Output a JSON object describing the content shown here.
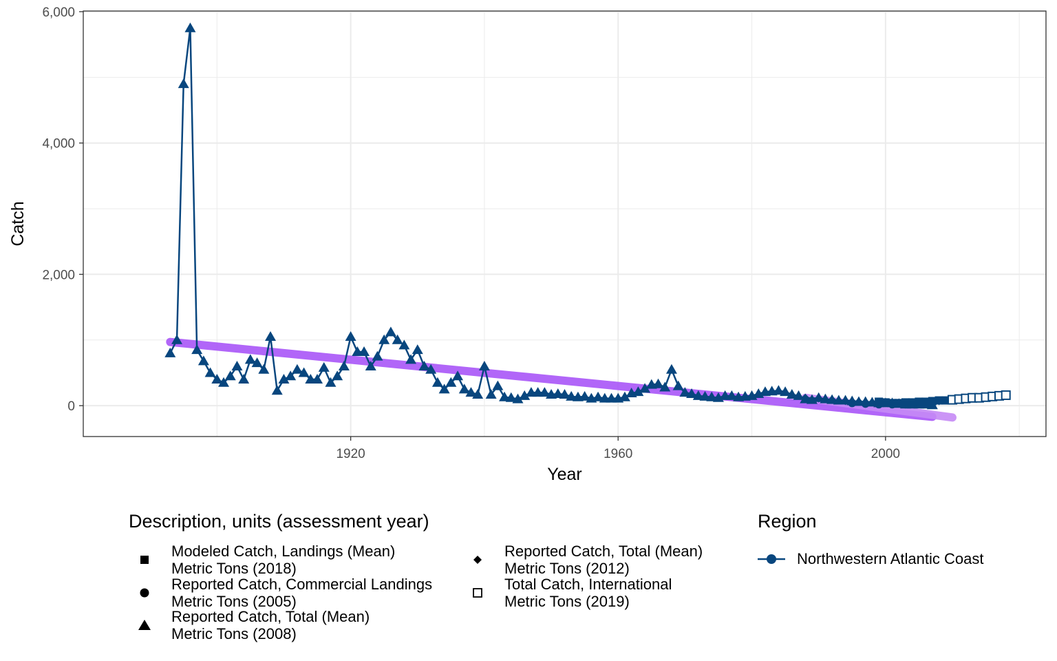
{
  "chart_data": {
    "type": "line",
    "title": "",
    "xlabel": "Year",
    "ylabel": "Catch",
    "xlim": [
      1880,
      2024
    ],
    "ylim": [
      -470,
      6010
    ],
    "x_ticks": [
      1920,
      1960,
      2000
    ],
    "x_tick_labels": [
      "1920",
      "1960",
      "2000"
    ],
    "y_ticks": [
      0,
      2000,
      4000,
      6000
    ],
    "y_tick_labels": [
      "0",
      "2,000",
      "4,000",
      "6,000"
    ],
    "grid": true,
    "colors": {
      "series": "#08467e",
      "trend": "#a855f7",
      "trend_light": "#c58af5"
    },
    "series": [
      {
        "name": "Reported Catch, Total (Mean) Metric Tons (2008)",
        "marker": "triangle",
        "region": "Northwestern Atlantic Coast",
        "x": [
          1893,
          1894,
          1895,
          1896,
          1897,
          1898,
          1899,
          1900,
          1901,
          1902,
          1903,
          1904,
          1905,
          1906,
          1907,
          1908,
          1909,
          1910,
          1911,
          1912,
          1913,
          1914,
          1915,
          1916,
          1917,
          1918,
          1919,
          1920,
          1921,
          1922,
          1923,
          1924,
          1925,
          1926,
          1927,
          1928,
          1929,
          1930,
          1931,
          1932,
          1933,
          1934,
          1935,
          1936,
          1937,
          1938,
          1939,
          1940,
          1941,
          1942,
          1943,
          1944,
          1945,
          1946,
          1947,
          1948,
          1949,
          1950,
          1951,
          1952,
          1953,
          1954,
          1955,
          1956,
          1957,
          1958,
          1959,
          1960,
          1961,
          1962,
          1963,
          1964,
          1965,
          1966,
          1967,
          1968,
          1969,
          1970,
          1971,
          1972,
          1973,
          1974,
          1975,
          1976,
          1977,
          1978,
          1979,
          1980,
          1981,
          1982,
          1983,
          1984,
          1985,
          1986,
          1987,
          1988,
          1989,
          1990,
          1991,
          1992,
          1993,
          1994,
          1995,
          1996,
          1997,
          1998,
          1999,
          2000,
          2001,
          2002,
          2003,
          2004,
          2005,
          2006,
          2007
        ],
        "y": [
          800,
          1000,
          4900,
          5750,
          850,
          680,
          500,
          400,
          350,
          450,
          600,
          400,
          700,
          650,
          550,
          1050,
          230,
          400,
          450,
          550,
          500,
          400,
          400,
          580,
          350,
          450,
          600,
          1050,
          820,
          820,
          600,
          750,
          1000,
          1120,
          1000,
          920,
          700,
          850,
          600,
          550,
          350,
          250,
          350,
          450,
          250,
          200,
          170,
          600,
          170,
          300,
          130,
          120,
          100,
          150,
          200,
          200,
          200,
          170,
          180,
          170,
          140,
          130,
          140,
          110,
          130,
          110,
          110,
          110,
          130,
          190,
          210,
          260,
          320,
          330,
          280,
          550,
          300,
          200,
          180,
          150,
          140,
          130,
          120,
          150,
          150,
          130,
          140,
          150,
          180,
          210,
          220,
          230,
          210,
          170,
          150,
          100,
          90,
          120,
          100,
          90,
          80,
          80,
          70,
          60,
          60,
          50,
          40,
          40,
          40,
          30,
          20,
          20,
          20,
          20,
          10
        ]
      },
      {
        "name": "Reported Catch, Total (Mean) Metric Tons (2012)",
        "marker": "diamond",
        "region": "Northwestern Atlantic Coast",
        "x": [
          1988,
          1990,
          1992,
          1994,
          1996,
          1998,
          2000,
          2002,
          2004,
          2006,
          2008,
          2010
        ],
        "y": [
          120,
          110,
          90,
          70,
          60,
          50,
          40,
          40,
          50,
          60,
          70,
          80
        ]
      },
      {
        "name": "Modeled Catch, Landings (Mean) Metric Tons (2018)",
        "marker": "square",
        "region": "Northwestern Atlantic Coast",
        "x": [
          1999,
          2000,
          2001,
          2002,
          2003,
          2004,
          2005,
          2006,
          2007,
          2008,
          2009,
          2010,
          2011,
          2012,
          2013,
          2014,
          2015,
          2016
        ],
        "y": [
          60,
          50,
          40,
          40,
          50,
          50,
          60,
          60,
          70,
          80,
          80,
          90,
          100,
          110,
          110,
          120,
          130,
          140
        ]
      },
      {
        "name": "Reported Catch, Commercial Landings Metric Tons (2005)",
        "marker": "circle",
        "region": "Northwestern Atlantic Coast",
        "x": [
          1995,
          1997,
          1999,
          2001,
          2003
        ],
        "y": [
          40,
          30,
          20,
          20,
          20
        ]
      },
      {
        "name": "Total Catch, International Metric Tons (2019)",
        "marker": "square-open",
        "region": "Northwestern Atlantic Coast",
        "x": [
          2010,
          2011,
          2012,
          2013,
          2014,
          2015,
          2016,
          2017,
          2018
        ],
        "y": [
          90,
          100,
          110,
          120,
          120,
          130,
          140,
          150,
          160
        ]
      }
    ],
    "trend_lines": [
      {
        "x": [
          1893,
          2007
        ],
        "y": [
          970,
          -170
        ]
      },
      {
        "x": [
          1988,
          2010
        ],
        "y": [
          120,
          -180
        ]
      }
    ],
    "legend": {
      "placement": "bottom",
      "description_title": "Description, units (assessment year)",
      "description_items": [
        {
          "symbol": "square",
          "label": "Modeled Catch, Landings (Mean)\nMetric Tons (2018)"
        },
        {
          "symbol": "circle",
          "label": "Reported Catch, Commercial Landings\nMetric Tons (2005)"
        },
        {
          "symbol": "triangle",
          "label": "Reported Catch, Total (Mean)\nMetric Tons (2008)"
        },
        {
          "symbol": "diamond",
          "label": "Reported Catch, Total (Mean)\nMetric Tons (2012)"
        },
        {
          "symbol": "square-open",
          "label": "Total Catch, International\nMetric Tons (2019)"
        }
      ],
      "region_title": "Region",
      "region_items": [
        {
          "symbol": "line-point",
          "label": "Northwestern Atlantic Coast"
        }
      ]
    }
  }
}
